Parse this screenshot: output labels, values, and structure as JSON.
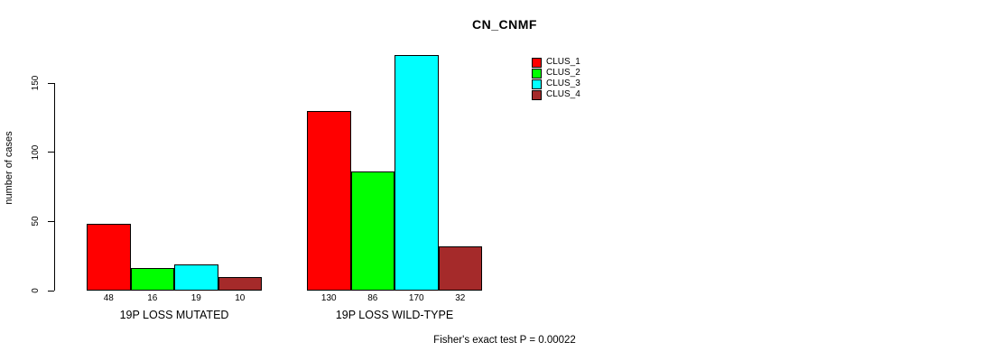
{
  "window": {
    "background_color": "#ffffff",
    "text_color": "#000000"
  },
  "chart_data": {
    "type": "bar",
    "title": "CN_CNMF",
    "xlabel": "",
    "ylabel": "number of cases",
    "ylim": [
      0,
      175
    ],
    "yticks": [
      0,
      50,
      100,
      150
    ],
    "grid": false,
    "legend_position": "top-right",
    "bar_border_color": "#000000",
    "series": [
      {
        "name": "CLUS_1",
        "color": "#ff0000"
      },
      {
        "name": "CLUS_2",
        "color": "#00ff00"
      },
      {
        "name": "CLUS_3",
        "color": "#00ffff"
      },
      {
        "name": "CLUS_4",
        "color": "#a52a2a"
      }
    ],
    "groups": [
      {
        "label": "19P LOSS MUTATED",
        "values": [
          48,
          16,
          19,
          10
        ]
      },
      {
        "label": "19P LOSS WILD-TYPE",
        "values": [
          130,
          86,
          170,
          32
        ]
      }
    ],
    "annotation": "Fisher's exact test P = 0.00022"
  }
}
